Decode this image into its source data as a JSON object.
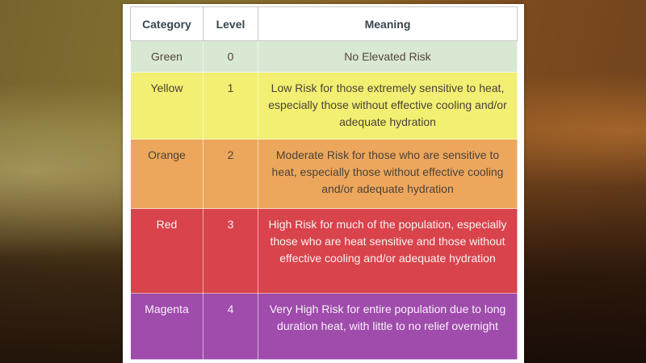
{
  "table": {
    "columns": [
      "Category",
      "Level",
      "Meaning"
    ],
    "rows": [
      {
        "category": "Green",
        "level": "0",
        "meaning": "No Elevated Risk",
        "bg": "#d8e8d2",
        "text_color": "#55453f"
      },
      {
        "category": "Yellow",
        "level": "1",
        "meaning": "Low Risk for those extremely sensitive to heat, especially those without effective cooling and/or adequate hydration",
        "bg": "#f2ef72",
        "text_color": "#4c4238"
      },
      {
        "category": "Orange",
        "level": "2",
        "meaning": "Moderate Risk for those who are sensitive to heat, especially those without effective cooling and/or adequate hydration",
        "bg": "#eda75c",
        "text_color": "#4c4238"
      },
      {
        "category": "Red",
        "level": "3",
        "meaning": "High Risk for much of the population, especially those who are heat sensitive and those without effective cooling and/or adequate hydration",
        "bg": "#d8434c",
        "text_color": "#fbf1f1"
      },
      {
        "category": "Magenta",
        "level": "4",
        "meaning": "Very High Risk for entire population due to long duration heat, with little to no relief overnight",
        "bg": "#9f4cac",
        "text_color": "#f8eff9"
      }
    ]
  },
  "colors": {
    "css_vars": {
      "header-text": "#37474f",
      "header-border": "#c9c9c9",
      "card-bg": "#ffffff",
      "bg-olive": "#75642e",
      "bg-orange": "#7c4b1e",
      "bg-light": "#d0c482",
      "bg-glow": "#e08a3a",
      "bg-dark": "#221208"
    }
  }
}
